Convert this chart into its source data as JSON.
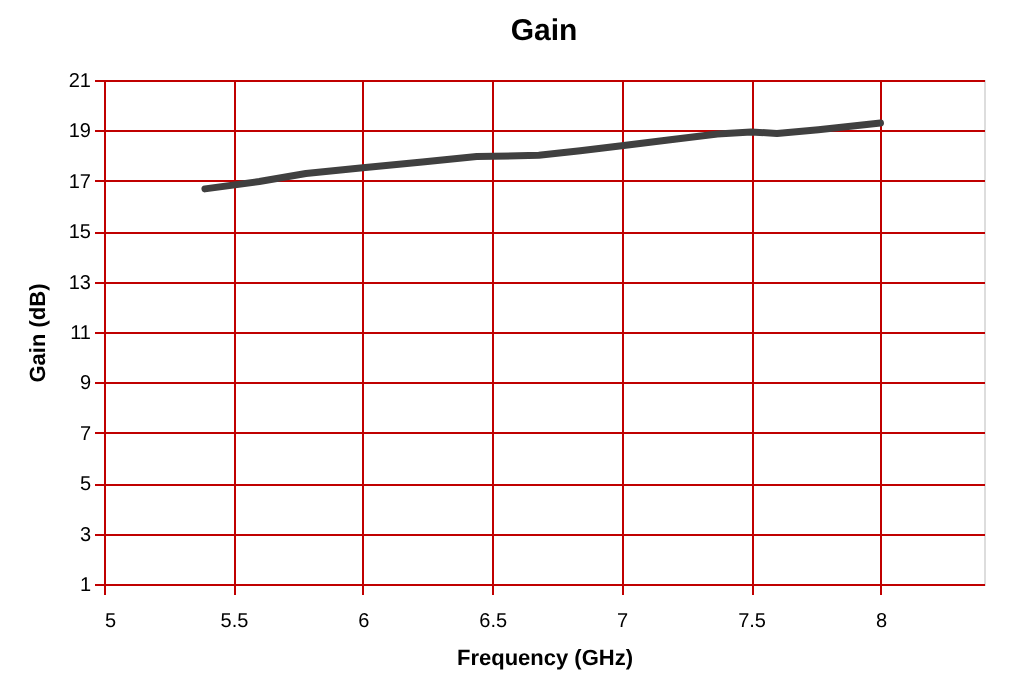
{
  "chart_data": {
    "type": "line",
    "title": "Gain",
    "xlabel": "Frequency (GHz)",
    "ylabel": "Gain (dB)",
    "x": [
      5.39,
      5.6,
      5.78,
      6.0,
      6.23,
      6.44,
      6.68,
      6.84,
      7.0,
      7.18,
      7.37,
      7.5,
      7.6,
      7.76,
      8.0
    ],
    "series": [
      {
        "color": "#404040",
        "values": [
          16.68,
          16.97,
          17.29,
          17.52,
          17.75,
          17.96,
          18.01,
          18.19,
          18.39,
          18.62,
          18.86,
          18.94,
          18.88,
          19.03,
          19.29
        ]
      }
    ],
    "xlim": [
      5,
      8.4
    ],
    "xticks": [
      5,
      5.5,
      6,
      6.5,
      7,
      7.5,
      8
    ],
    "ylim": [
      1,
      21
    ],
    "yticks": [
      1,
      3,
      5,
      7,
      9,
      11,
      13,
      15,
      17,
      19,
      21
    ],
    "grid": true,
    "marker": "none",
    "line_style": "solid"
  }
}
